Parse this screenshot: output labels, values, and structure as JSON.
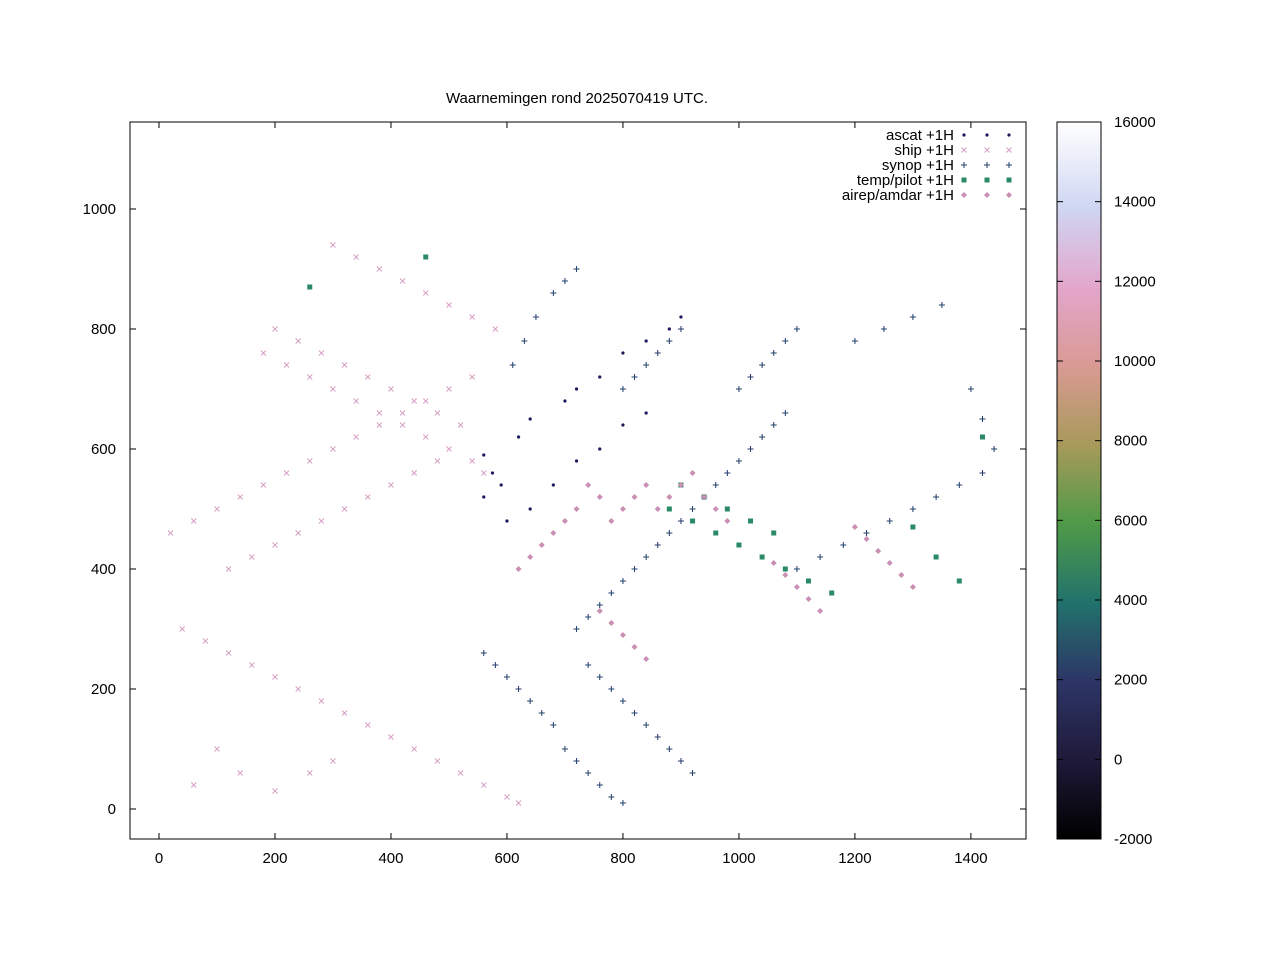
{
  "chart_data": {
    "type": "scatter",
    "title": "Waarnemingen rond 2025070419 UTC.",
    "xlabel": "",
    "ylabel": "",
    "xlim": [
      -50,
      1495
    ],
    "ylim": [
      -50,
      1145
    ],
    "x_ticks": [
      0,
      200,
      400,
      600,
      800,
      1000,
      1200,
      1400
    ],
    "y_ticks": [
      0,
      200,
      400,
      600,
      800,
      1000
    ],
    "grid": false,
    "legend_position": "top-right",
    "series": [
      {
        "name": "ascat +1H",
        "marker": "dot",
        "color": "#1a1a5e",
        "points": [
          [
            560,
            590
          ],
          [
            575,
            560
          ],
          [
            590,
            540
          ],
          [
            620,
            620
          ],
          [
            640,
            650
          ],
          [
            700,
            680
          ],
          [
            720,
            700
          ],
          [
            760,
            720
          ],
          [
            800,
            760
          ],
          [
            840,
            780
          ],
          [
            880,
            800
          ],
          [
            900,
            820
          ],
          [
            560,
            520
          ],
          [
            600,
            480
          ],
          [
            640,
            500
          ],
          [
            680,
            540
          ],
          [
            720,
            580
          ],
          [
            760,
            600
          ],
          [
            800,
            640
          ],
          [
            840,
            660
          ]
        ]
      },
      {
        "name": "ship +1H",
        "marker": "x",
        "color": "#d79fc4",
        "points": [
          [
            20,
            460
          ],
          [
            60,
            480
          ],
          [
            100,
            500
          ],
          [
            140,
            520
          ],
          [
            180,
            540
          ],
          [
            220,
            560
          ],
          [
            260,
            580
          ],
          [
            300,
            600
          ],
          [
            340,
            620
          ],
          [
            380,
            640
          ],
          [
            420,
            660
          ],
          [
            460,
            680
          ],
          [
            500,
            700
          ],
          [
            540,
            720
          ],
          [
            40,
            300
          ],
          [
            80,
            280
          ],
          [
            120,
            260
          ],
          [
            160,
            240
          ],
          [
            200,
            220
          ],
          [
            240,
            200
          ],
          [
            280,
            180
          ],
          [
            320,
            160
          ],
          [
            360,
            140
          ],
          [
            400,
            120
          ],
          [
            440,
            100
          ],
          [
            480,
            80
          ],
          [
            520,
            60
          ],
          [
            560,
            40
          ],
          [
            600,
            20
          ],
          [
            620,
            10
          ],
          [
            100,
            100
          ],
          [
            140,
            60
          ],
          [
            60,
            40
          ],
          [
            200,
            30
          ],
          [
            260,
            60
          ],
          [
            300,
            80
          ],
          [
            180,
            760
          ],
          [
            220,
            740
          ],
          [
            260,
            720
          ],
          [
            300,
            700
          ],
          [
            340,
            680
          ],
          [
            380,
            660
          ],
          [
            420,
            640
          ],
          [
            460,
            620
          ],
          [
            500,
            600
          ],
          [
            540,
            580
          ],
          [
            560,
            560
          ],
          [
            200,
            800
          ],
          [
            240,
            780
          ],
          [
            280,
            760
          ],
          [
            320,
            740
          ],
          [
            360,
            720
          ],
          [
            400,
            700
          ],
          [
            440,
            680
          ],
          [
            480,
            660
          ],
          [
            520,
            640
          ],
          [
            300,
            940
          ],
          [
            340,
            920
          ],
          [
            380,
            900
          ],
          [
            420,
            880
          ],
          [
            460,
            860
          ],
          [
            500,
            840
          ],
          [
            540,
            820
          ],
          [
            580,
            800
          ],
          [
            120,
            400
          ],
          [
            160,
            420
          ],
          [
            200,
            440
          ],
          [
            240,
            460
          ],
          [
            280,
            480
          ],
          [
            320,
            500
          ],
          [
            360,
            520
          ],
          [
            400,
            540
          ],
          [
            440,
            560
          ],
          [
            480,
            580
          ]
        ]
      },
      {
        "name": "synop +1H",
        "marker": "plus",
        "color": "#1f3d6b",
        "points": [
          [
            720,
            300
          ],
          [
            740,
            320
          ],
          [
            760,
            340
          ],
          [
            780,
            360
          ],
          [
            800,
            380
          ],
          [
            820,
            400
          ],
          [
            840,
            420
          ],
          [
            860,
            440
          ],
          [
            880,
            460
          ],
          [
            900,
            480
          ],
          [
            920,
            500
          ],
          [
            940,
            520
          ],
          [
            960,
            540
          ],
          [
            980,
            560
          ],
          [
            1000,
            580
          ],
          [
            1020,
            600
          ],
          [
            1040,
            620
          ],
          [
            1060,
            640
          ],
          [
            1080,
            660
          ],
          [
            740,
            240
          ],
          [
            760,
            220
          ],
          [
            780,
            200
          ],
          [
            800,
            180
          ],
          [
            820,
            160
          ],
          [
            840,
            140
          ],
          [
            860,
            120
          ],
          [
            880,
            100
          ],
          [
            900,
            80
          ],
          [
            920,
            60
          ],
          [
            700,
            100
          ],
          [
            720,
            80
          ],
          [
            740,
            60
          ],
          [
            760,
            40
          ],
          [
            780,
            20
          ],
          [
            800,
            10
          ],
          [
            1100,
            400
          ],
          [
            1140,
            420
          ],
          [
            1180,
            440
          ],
          [
            1220,
            460
          ],
          [
            1260,
            480
          ],
          [
            1300,
            500
          ],
          [
            1340,
            520
          ],
          [
            1380,
            540
          ],
          [
            1420,
            560
          ],
          [
            1000,
            700
          ],
          [
            1020,
            720
          ],
          [
            1040,
            740
          ],
          [
            1060,
            760
          ],
          [
            1080,
            780
          ],
          [
            1100,
            800
          ],
          [
            800,
            700
          ],
          [
            820,
            720
          ],
          [
            840,
            740
          ],
          [
            860,
            760
          ],
          [
            880,
            780
          ],
          [
            900,
            800
          ],
          [
            650,
            820
          ],
          [
            630,
            780
          ],
          [
            610,
            740
          ],
          [
            680,
            860
          ],
          [
            700,
            880
          ],
          [
            720,
            900
          ],
          [
            1200,
            780
          ],
          [
            1250,
            800
          ],
          [
            1300,
            820
          ],
          [
            1350,
            840
          ],
          [
            1400,
            700
          ],
          [
            1420,
            650
          ],
          [
            1440,
            600
          ],
          [
            560,
            260
          ],
          [
            580,
            240
          ],
          [
            600,
            220
          ],
          [
            620,
            200
          ],
          [
            640,
            180
          ],
          [
            660,
            160
          ],
          [
            680,
            140
          ]
        ]
      },
      {
        "name": "temp/pilot +1H",
        "marker": "square",
        "color": "#2a8a66",
        "points": [
          [
            880,
            500
          ],
          [
            920,
            480
          ],
          [
            960,
            460
          ],
          [
            1000,
            440
          ],
          [
            1040,
            420
          ],
          [
            1080,
            400
          ],
          [
            1120,
            380
          ],
          [
            1160,
            360
          ],
          [
            900,
            540
          ],
          [
            940,
            520
          ],
          [
            980,
            500
          ],
          [
            1020,
            480
          ],
          [
            1060,
            460
          ],
          [
            1300,
            470
          ],
          [
            1340,
            420
          ],
          [
            1380,
            380
          ],
          [
            1420,
            620
          ],
          [
            260,
            870
          ],
          [
            460,
            920
          ]
        ]
      },
      {
        "name": "airep/amdar +1H",
        "marker": "diamond",
        "color": "#c98fb4",
        "points": [
          [
            780,
            480
          ],
          [
            800,
            500
          ],
          [
            820,
            520
          ],
          [
            840,
            540
          ],
          [
            860,
            500
          ],
          [
            880,
            520
          ],
          [
            900,
            540
          ],
          [
            920,
            560
          ],
          [
            940,
            520
          ],
          [
            960,
            500
          ],
          [
            980,
            480
          ],
          [
            760,
            520
          ],
          [
            740,
            540
          ],
          [
            720,
            500
          ],
          [
            700,
            480
          ],
          [
            680,
            460
          ],
          [
            660,
            440
          ],
          [
            640,
            420
          ],
          [
            620,
            400
          ],
          [
            760,
            330
          ],
          [
            780,
            310
          ],
          [
            800,
            290
          ],
          [
            820,
            270
          ],
          [
            840,
            250
          ],
          [
            1060,
            410
          ],
          [
            1080,
            390
          ],
          [
            1100,
            370
          ],
          [
            1120,
            350
          ],
          [
            1140,
            330
          ],
          [
            1200,
            470
          ],
          [
            1220,
            450
          ],
          [
            1240,
            430
          ],
          [
            1260,
            410
          ],
          [
            1280,
            390
          ],
          [
            1300,
            370
          ]
        ]
      }
    ],
    "colorbar": {
      "min": -2000,
      "max": 16000,
      "ticks": [
        -2000,
        0,
        2000,
        4000,
        6000,
        8000,
        10000,
        12000,
        14000,
        16000
      ]
    }
  }
}
